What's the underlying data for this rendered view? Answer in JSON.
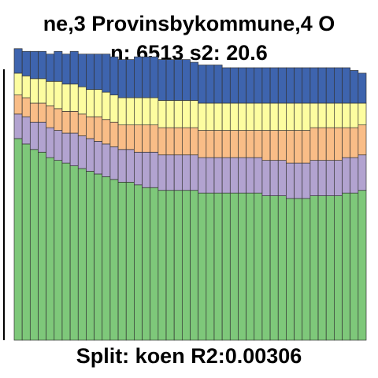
{
  "chart_data": {
    "type": "bar",
    "stacked": true,
    "normalized": true,
    "title_line1": "ne,3 Provinsbykommune,4 O",
    "title_line2": "n: 6513 s2: 20.6",
    "xlabel": "Split: koen R2:0.00306",
    "ylim": [
      0,
      1
    ],
    "grid": false,
    "colors": [
      "#7ec87a",
      "#b2a3d0",
      "#f9bd87",
      "#fdfda0",
      "#3e64ae"
    ],
    "series": [
      {
        "values": [
          0.74,
          0.72,
          0.7,
          0.69,
          0.67,
          0.66,
          0.65,
          0.64,
          0.63,
          0.62,
          0.61,
          0.6,
          0.59,
          0.58,
          0.58,
          0.57,
          0.56,
          0.56,
          0.55,
          0.55,
          0.55,
          0.55,
          0.55,
          0.54,
          0.54,
          0.54,
          0.54,
          0.54,
          0.54,
          0.54,
          0.54,
          0.53,
          0.53,
          0.53,
          0.52,
          0.52,
          0.52,
          0.53,
          0.53,
          0.53,
          0.53,
          0.54,
          0.54,
          0.55
        ]
      },
      {
        "values": [
          0.09,
          0.1,
          0.1,
          0.11,
          0.11,
          0.11,
          0.11,
          0.12,
          0.12,
          0.12,
          0.12,
          0.12,
          0.12,
          0.12,
          0.12,
          0.12,
          0.13,
          0.13,
          0.13,
          0.13,
          0.13,
          0.13,
          0.13,
          0.13,
          0.13,
          0.13,
          0.13,
          0.13,
          0.13,
          0.13,
          0.13,
          0.13,
          0.13,
          0.13,
          0.13,
          0.13,
          0.13,
          0.13,
          0.13,
          0.13,
          0.13,
          0.13,
          0.13,
          0.13
        ]
      },
      {
        "values": [
          0.07,
          0.07,
          0.07,
          0.07,
          0.08,
          0.08,
          0.08,
          0.08,
          0.08,
          0.08,
          0.09,
          0.09,
          0.09,
          0.09,
          0.09,
          0.1,
          0.1,
          0.1,
          0.1,
          0.1,
          0.1,
          0.1,
          0.1,
          0.1,
          0.1,
          0.1,
          0.1,
          0.1,
          0.1,
          0.1,
          0.1,
          0.11,
          0.11,
          0.11,
          0.12,
          0.12,
          0.12,
          0.12,
          0.12,
          0.12,
          0.12,
          0.11,
          0.11,
          0.11
        ]
      },
      {
        "values": [
          0.08,
          0.08,
          0.09,
          0.09,
          0.09,
          0.1,
          0.1,
          0.1,
          0.1,
          0.1,
          0.1,
          0.1,
          0.1,
          0.1,
          0.1,
          0.1,
          0.1,
          0.1,
          0.1,
          0.1,
          0.1,
          0.1,
          0.1,
          0.1,
          0.1,
          0.1,
          0.1,
          0.1,
          0.1,
          0.1,
          0.1,
          0.1,
          0.1,
          0.1,
          0.1,
          0.1,
          0.1,
          0.09,
          0.09,
          0.09,
          0.09,
          0.09,
          0.09,
          0.08
        ]
      },
      {
        "values": [
          0.09,
          0.09,
          0.1,
          0.1,
          0.1,
          0.11,
          0.11,
          0.12,
          0.12,
          0.13,
          0.13,
          0.14,
          0.14,
          0.14,
          0.14,
          0.15,
          0.15,
          0.15,
          0.15,
          0.15,
          0.15,
          0.15,
          0.14,
          0.14,
          0.14,
          0.14,
          0.13,
          0.13,
          0.13,
          0.13,
          0.13,
          0.13,
          0.13,
          0.13,
          0.13,
          0.13,
          0.13,
          0.13,
          0.13,
          0.13,
          0.13,
          0.13,
          0.12,
          0.11
        ]
      }
    ]
  }
}
